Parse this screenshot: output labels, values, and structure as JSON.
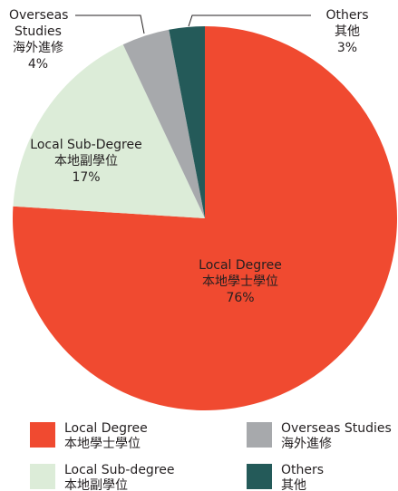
{
  "chart_data": {
    "type": "pie",
    "labels": [
      [
        "Local Degree",
        "本地學士學位"
      ],
      [
        "Local Sub-Degree",
        "本地副學位"
      ],
      [
        "Overseas",
        "Studies",
        "海外進修"
      ],
      [
        "Others",
        "其他"
      ]
    ],
    "values": [
      76,
      17,
      4,
      3
    ],
    "value_labels": [
      "76%",
      "17%",
      "4%",
      "3%"
    ],
    "colors": [
      "#f04a30",
      "#dcecd8",
      "#a7a9ac",
      "#245a59"
    ],
    "legend": [
      [
        "Local Degree",
        "本地學士學位"
      ],
      [
        "Local Sub-degree",
        "本地副學位"
      ],
      [
        "Overseas Studies",
        "海外進修"
      ],
      [
        "Others",
        "其他"
      ]
    ]
  }
}
